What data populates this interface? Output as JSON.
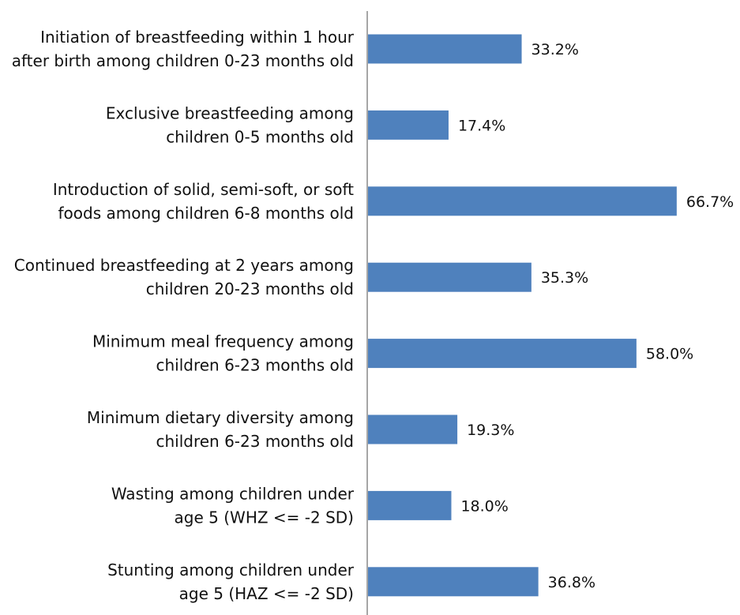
{
  "chart_data": {
    "type": "bar",
    "orientation": "horizontal",
    "categories": [
      [
        "Initiation of breastfeeding within 1 hour",
        "after birth among children 0-23 months old"
      ],
      [
        "Exclusive breastfeeding among",
        "children 0-5 months old"
      ],
      [
        "Introduction of solid, semi-soft, or soft",
        "foods among children 6-8 months old"
      ],
      [
        "Continued breastfeeding at 2 years among",
        "children 20-23 months old"
      ],
      [
        "Minimum meal frequency  among",
        "children 6-23 months old"
      ],
      [
        "Minimum dietary diversity among",
        "children 6-23 months old"
      ],
      [
        "Wasting among children under",
        "age 5 (WHZ <= -2 SD)"
      ],
      [
        "Stunting among children under",
        "age 5 (HAZ <= -2 SD)"
      ]
    ],
    "values": [
      33.2,
      17.4,
      66.7,
      35.3,
      58.0,
      19.3,
      18.0,
      36.8
    ],
    "value_labels": [
      "33.2%",
      "17.4%",
      "66.7%",
      "35.3%",
      "58.0%",
      "19.3%",
      "18.0%",
      "36.8%"
    ],
    "unit": "%",
    "xlim": [
      0,
      70
    ],
    "bar_color": "#4f81bd",
    "axis_color": "#a6a6a6",
    "grid": false,
    "legend": "none",
    "title": "",
    "xlabel": "",
    "ylabel": ""
  }
}
